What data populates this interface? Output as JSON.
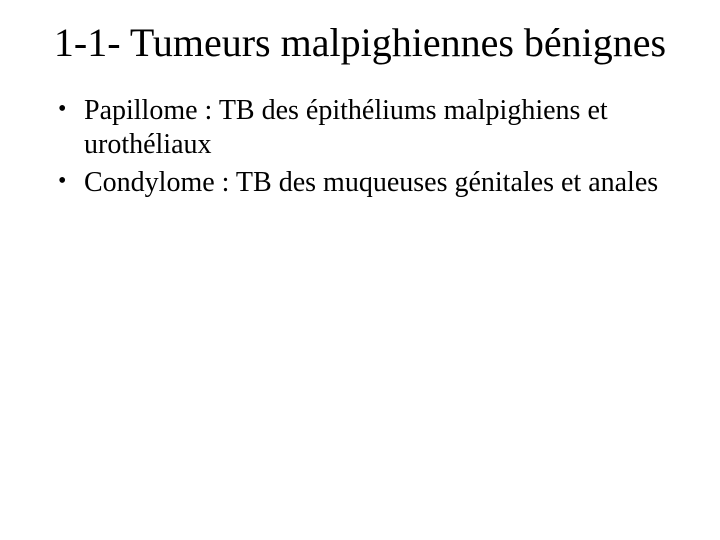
{
  "slide": {
    "background_color": "#ffffff",
    "text_color": "#000000",
    "font_family": "Times New Roman",
    "title": {
      "text": "1-1- Tumeurs malpighiennes bénignes",
      "fontsize": 40,
      "align": "center",
      "weight": "normal"
    },
    "bullets": {
      "fontsize": 28,
      "marker": "•",
      "items": [
        "Papillome : TB des épithéliums malpighiens et urothéliaux",
        "Condylome : TB des muqueuses génitales et anales"
      ]
    }
  }
}
